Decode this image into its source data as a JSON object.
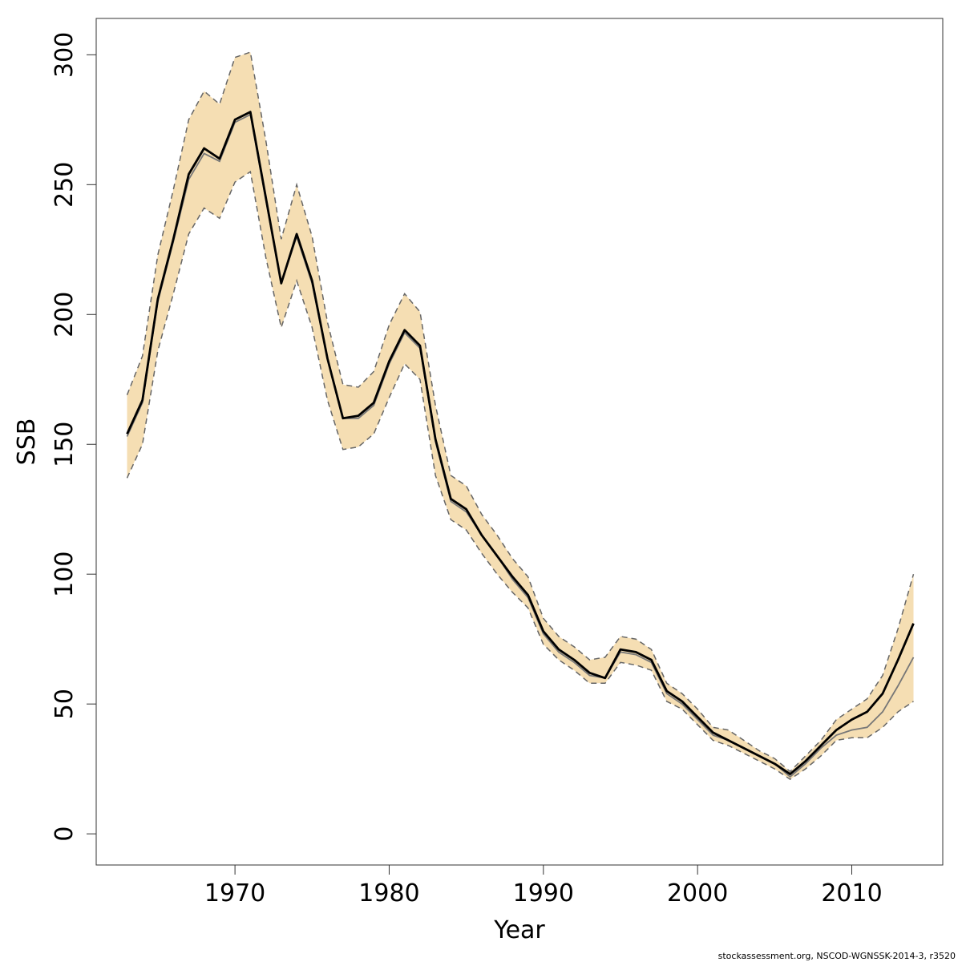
{
  "chart_data": {
    "type": "line",
    "title": "",
    "xlabel": "Year",
    "ylabel": "SSB",
    "xlim": [
      1961.0,
      2015.9
    ],
    "ylim": [
      -12,
      314
    ],
    "x_ticks": [
      "1970",
      "1980",
      "1990",
      "2000",
      "2010"
    ],
    "y_ticks": [
      "0",
      "50",
      "100",
      "150",
      "200",
      "250",
      "300"
    ],
    "grid": false,
    "legend": "none",
    "colors": {
      "band_fill": "#f5deb3",
      "main_line": "#000000",
      "alt_line": "#777777",
      "bound_line": "#666666"
    },
    "series": [
      {
        "role": "estimate",
        "x": [
          1963,
          1964,
          1965,
          1966,
          1967,
          1968,
          1969,
          1970,
          1971,
          1972,
          1973,
          1974,
          1975,
          1976,
          1977,
          1978,
          1979,
          1980,
          1981,
          1982,
          1983,
          1984,
          1985,
          1986,
          1987,
          1988,
          1989,
          1990,
          1991,
          1992,
          1993,
          1994,
          1995,
          1996,
          1997,
          1998,
          1999,
          2000,
          2001,
          2002,
          2003,
          2004,
          2005,
          2006,
          2007,
          2008,
          2009,
          2010,
          2011,
          2012,
          2013,
          2014
        ],
        "values": [
          154,
          167,
          206,
          229,
          254,
          264,
          260,
          275,
          278,
          245,
          212,
          231,
          213,
          183,
          160,
          161,
          166,
          182,
          194,
          188,
          152,
          129,
          125,
          115,
          107,
          99,
          92,
          78,
          71,
          67,
          62,
          60,
          71,
          70,
          67,
          55,
          51,
          45,
          39,
          36,
          33,
          30,
          27,
          23,
          28,
          34,
          40,
          44,
          47,
          54,
          67,
          81
        ]
      },
      {
        "role": "lower_bound",
        "x": [
          1963,
          1964,
          1965,
          1966,
          1967,
          1968,
          1969,
          1970,
          1971,
          1972,
          1973,
          1974,
          1975,
          1976,
          1977,
          1978,
          1979,
          1980,
          1981,
          1982,
          1983,
          1984,
          1985,
          1986,
          1987,
          1988,
          1989,
          1990,
          1991,
          1992,
          1993,
          1994,
          1995,
          1996,
          1997,
          1998,
          1999,
          2000,
          2001,
          2002,
          2003,
          2004,
          2005,
          2006,
          2007,
          2008,
          2009,
          2010,
          2011,
          2012,
          2013,
          2014
        ],
        "values": [
          137,
          150,
          186,
          208,
          231,
          241,
          237,
          251,
          255,
          222,
          195,
          213,
          195,
          167,
          148,
          149,
          154,
          168,
          181,
          175,
          138,
          121,
          117,
          108,
          100,
          93,
          87,
          73,
          67,
          63,
          58,
          58,
          66,
          65,
          63,
          51,
          48,
          42,
          36,
          34,
          31,
          28,
          25,
          21,
          25,
          30,
          36,
          37,
          37,
          41,
          47,
          51
        ]
      },
      {
        "role": "upper_bound",
        "x": [
          1963,
          1964,
          1965,
          1966,
          1967,
          1968,
          1969,
          1970,
          1971,
          1972,
          1973,
          1974,
          1975,
          1976,
          1977,
          1978,
          1979,
          1980,
          1981,
          1982,
          1983,
          1984,
          1985,
          1986,
          1987,
          1988,
          1989,
          1990,
          1991,
          1992,
          1993,
          1994,
          1995,
          1996,
          1997,
          1998,
          1999,
          2000,
          2001,
          2002,
          2003,
          2004,
          2005,
          2006,
          2007,
          2008,
          2009,
          2010,
          2011,
          2012,
          2013,
          2014
        ],
        "values": [
          169,
          184,
          223,
          248,
          275,
          286,
          281,
          299,
          301,
          267,
          229,
          250,
          230,
          197,
          173,
          172,
          178,
          196,
          208,
          201,
          165,
          138,
          134,
          123,
          115,
          106,
          99,
          83,
          76,
          72,
          67,
          68,
          76,
          75,
          71,
          58,
          54,
          48,
          41,
          40,
          36,
          32,
          29,
          24,
          30,
          36,
          44,
          48,
          52,
          61,
          79,
          100
        ]
      },
      {
        "role": "alternative",
        "x": [
          1963,
          1964,
          1965,
          1966,
          1967,
          1968,
          1969,
          1970,
          1971,
          1972,
          1973,
          1974,
          1975,
          1976,
          1977,
          1978,
          1979,
          1980,
          1981,
          1982,
          1983,
          1984,
          1985,
          1986,
          1987,
          1988,
          1989,
          1990,
          1991,
          1992,
          1993,
          1994,
          1995,
          1996,
          1997,
          1998,
          1999,
          2000,
          2001,
          2002,
          2003,
          2004,
          2005,
          2006,
          2007,
          2008,
          2009,
          2010,
          2011,
          2012,
          2013,
          2014
        ],
        "values": [
          153,
          166,
          205,
          228,
          252,
          262,
          259,
          274,
          277,
          244,
          212,
          230,
          212,
          183,
          160,
          160,
          165,
          181,
          193,
          187,
          151,
          128,
          124,
          115,
          107,
          98,
          91,
          77,
          70,
          66,
          61,
          60,
          70,
          69,
          66,
          54,
          50,
          44,
          38,
          36,
          33,
          30,
          27,
          22,
          27,
          33,
          38,
          40,
          41,
          47,
          57,
          68
        ]
      }
    ]
  },
  "footer": {
    "text": "stockassessment.org, NSCOD-WGNSSK-2014-3, r3520"
  }
}
